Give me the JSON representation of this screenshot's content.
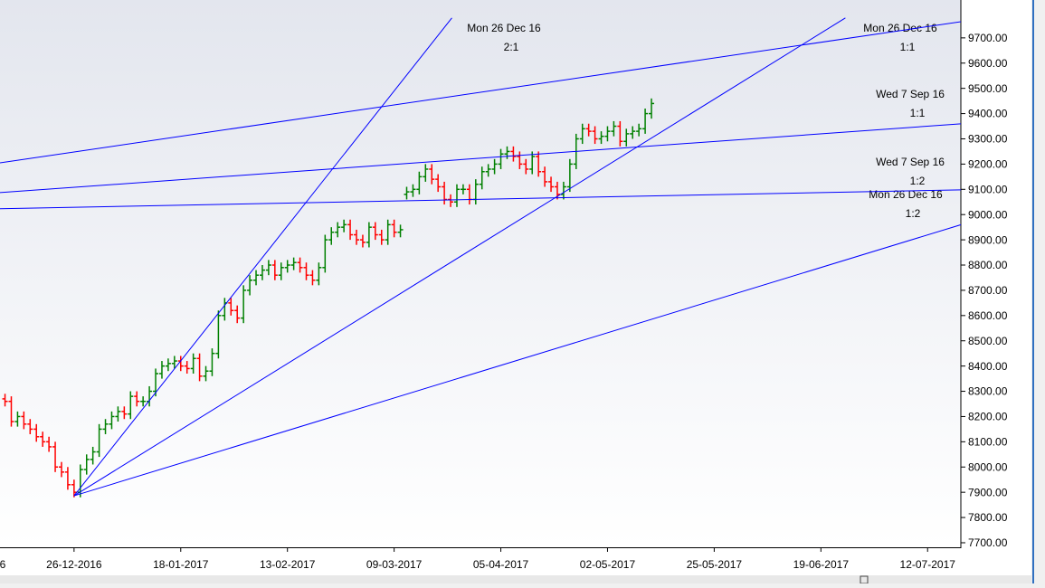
{
  "chart_data": {
    "type": "ohlc",
    "x": [
      -11,
      -10,
      -9,
      -8,
      -7,
      -6,
      -5,
      -4,
      -3,
      -2,
      -1,
      0,
      1,
      2,
      3,
      4,
      5,
      6,
      7,
      8,
      9,
      10,
      11,
      12,
      13,
      14,
      15,
      16,
      17,
      18,
      19,
      20,
      21,
      22,
      23,
      24,
      25,
      26,
      27,
      28,
      29,
      30,
      31,
      32,
      33,
      34,
      35,
      36,
      37,
      38,
      39,
      40,
      41,
      42,
      43,
      44,
      45,
      46,
      47,
      48,
      49,
      50,
      51,
      52,
      53,
      54,
      55,
      56,
      57,
      58,
      59,
      60,
      61,
      62,
      63,
      64,
      65,
      66,
      67,
      68,
      69,
      70,
      71,
      72,
      73,
      74,
      75,
      76,
      77,
      78,
      79,
      80,
      81,
      82,
      83,
      84,
      85,
      86,
      87,
      88,
      89,
      90,
      91,
      92
    ],
    "open": [
      8270,
      8260,
      8180,
      8200,
      8170,
      8150,
      8120,
      8100,
      8080,
      8000,
      7980,
      7930,
      7900,
      7990,
      8030,
      8060,
      8150,
      8170,
      8200,
      8220,
      8210,
      8280,
      8260,
      8260,
      8300,
      8370,
      8400,
      8410,
      8420,
      8400,
      8390,
      8430,
      8360,
      8380,
      8450,
      8600,
      8650,
      8620,
      8590,
      8700,
      8740,
      8760,
      8780,
      8800,
      8760,
      8790,
      8800,
      8810,
      8790,
      8760,
      8740,
      8790,
      8900,
      8930,
      8950,
      8960,
      8920,
      8900,
      8890,
      8950,
      8920,
      8900,
      8960,
      8930,
      9080,
      9090,
      9100,
      9150,
      9180,
      9140,
      9110,
      9060,
      9050,
      9100,
      9100,
      9060,
      9120,
      9170,
      9180,
      9200,
      9240,
      9250,
      9230,
      9200,
      9180,
      9230,
      9170,
      9130,
      9110,
      9080,
      9110,
      9200,
      9300,
      9340,
      9330,
      9300,
      9310,
      9330,
      9350,
      9290,
      9320,
      9330,
      9340,
      9400
    ],
    "high": [
      8290,
      8280,
      8220,
      8220,
      8190,
      8170,
      8140,
      8120,
      8100,
      8020,
      8000,
      7950,
      8010,
      8050,
      8080,
      8170,
      8190,
      8220,
      8240,
      8240,
      8300,
      8300,
      8280,
      8320,
      8390,
      8420,
      8430,
      8440,
      8440,
      8420,
      8450,
      8450,
      8400,
      8470,
      8620,
      8670,
      8670,
      8640,
      8720,
      8760,
      8780,
      8800,
      8820,
      8820,
      8810,
      8820,
      8830,
      8830,
      8810,
      8780,
      8810,
      8920,
      8950,
      8970,
      8980,
      8980,
      8940,
      8920,
      8970,
      8970,
      8940,
      8980,
      8980,
      8960,
      9110,
      9120,
      9170,
      9200,
      9200,
      9160,
      9130,
      9080,
      9120,
      9120,
      9120,
      9140,
      9190,
      9200,
      9220,
      9260,
      9270,
      9270,
      9250,
      9220,
      9250,
      9250,
      9190,
      9150,
      9130,
      9130,
      9220,
      9320,
      9360,
      9360,
      9350,
      9330,
      9350,
      9370,
      9370,
      9340,
      9350,
      9360,
      9420,
      9460
    ],
    "low": [
      8240,
      8160,
      8160,
      8150,
      8130,
      8100,
      8080,
      8060,
      7980,
      7960,
      7910,
      7880,
      7880,
      7970,
      8010,
      8040,
      8130,
      8150,
      8180,
      8190,
      8190,
      8240,
      8240,
      8240,
      8280,
      8350,
      8380,
      8390,
      8380,
      8370,
      8370,
      8340,
      8340,
      8360,
      8430,
      8580,
      8600,
      8570,
      8570,
      8680,
      8720,
      8740,
      8760,
      8740,
      8740,
      8770,
      8780,
      8770,
      8740,
      8720,
      8720,
      8770,
      8880,
      8910,
      8930,
      8900,
      8880,
      8870,
      8870,
      8900,
      8880,
      8880,
      8910,
      8910,
      9060,
      9070,
      9080,
      9130,
      9120,
      9090,
      9040,
      9030,
      9030,
      9080,
      9040,
      9040,
      9100,
      9150,
      9160,
      9180,
      9220,
      9210,
      9180,
      9160,
      9160,
      9150,
      9110,
      9090,
      9060,
      9060,
      9090,
      9180,
      9280,
      9310,
      9280,
      9280,
      9290,
      9310,
      9270,
      9270,
      9300,
      9310,
      9320,
      9380
    ],
    "close": [
      8260,
      8180,
      8200,
      8170,
      8150,
      8120,
      8100,
      8080,
      8000,
      7980,
      7930,
      7900,
      7990,
      8030,
      8060,
      8150,
      8170,
      8200,
      8220,
      8210,
      8280,
      8260,
      8260,
      8300,
      8370,
      8400,
      8410,
      8420,
      8400,
      8390,
      8430,
      8360,
      8380,
      8450,
      8600,
      8650,
      8620,
      8590,
      8700,
      8740,
      8760,
      8780,
      8800,
      8760,
      8790,
      8800,
      8810,
      8790,
      8760,
      8740,
      8790,
      8900,
      8930,
      8950,
      8960,
      8920,
      8900,
      8890,
      8950,
      8920,
      8900,
      8960,
      8930,
      8940,
      9090,
      9100,
      9150,
      9180,
      9140,
      9110,
      9060,
      9050,
      9100,
      9100,
      9060,
      9120,
      9170,
      9180,
      9200,
      9240,
      9250,
      9230,
      9200,
      9180,
      9230,
      9170,
      9130,
      9110,
      9080,
      9110,
      9200,
      9300,
      9340,
      9330,
      9300,
      9310,
      9330,
      9350,
      9290,
      9320,
      9330,
      9340,
      9400,
      9440
    ],
    "up_color": "#008000",
    "down_color": "#ff0000",
    "trendline_color": "#0000ff",
    "trendlines": [
      {
        "x": [
          0,
          60.2
        ],
        "y": [
          7886,
          9779
        ],
        "label": "Mon 26 Dec 16",
        "ratio": "2:1"
      },
      {
        "x": [
          0,
          122.9
        ],
        "y": [
          7886,
          9779
        ],
        "label": "Mon 26 Dec 16",
        "ratio": "1:1"
      },
      {
        "x": [
          0,
          141.6
        ],
        "y": [
          7886,
          8962
        ],
        "label": "Mon 26 Dec 16",
        "ratio": "1:2"
      },
      {
        "x": [
          -11.8,
          141.6
        ],
        "y": [
          9205,
          9765
        ]
      },
      {
        "x": [
          -11.8,
          141.6
        ],
        "y": [
          9087,
          9360
        ],
        "label": "Wed 7 Sep 16",
        "ratio": "1:1"
      },
      {
        "x": [
          -11.8,
          141.6
        ],
        "y": [
          9023,
          9098
        ],
        "label": "Wed 7 Sep 16",
        "ratio": "1:2"
      }
    ],
    "xlim": [
      -11.8,
      141.3
    ],
    "xticks": [
      {
        "value": -12,
        "label": "6"
      },
      {
        "value": 0,
        "label": "26-12-2016"
      },
      {
        "value": 17,
        "label": "18-01-2017"
      },
      {
        "value": 34,
        "label": "13-02-2017"
      },
      {
        "value": 51,
        "label": "09-03-2017"
      },
      {
        "value": 68,
        "label": "05-04-2017"
      },
      {
        "value": 85,
        "label": "02-05-2017"
      },
      {
        "value": 102,
        "label": "25-05-2017"
      },
      {
        "value": 119,
        "label": "19-06-2017"
      },
      {
        "value": 136,
        "label": "12-07-2017"
      }
    ],
    "ylim": [
      7682,
      9850
    ],
    "yticks": [
      {
        "value": 7700,
        "label": "7700.00"
      },
      {
        "value": 7800,
        "label": "7800.00"
      },
      {
        "value": 7900,
        "label": "7900.00"
      },
      {
        "value": 8000,
        "label": "8000.00"
      },
      {
        "value": 8100,
        "label": "8100.00"
      },
      {
        "value": 8200,
        "label": "8200.00"
      },
      {
        "value": 8300,
        "label": "8300.00"
      },
      {
        "value": 8400,
        "label": "8400.00"
      },
      {
        "value": 8500,
        "label": "8500.00"
      },
      {
        "value": 8600,
        "label": "8600.00"
      },
      {
        "value": 8700,
        "label": "8700.00"
      },
      {
        "value": 8800,
        "label": "8800.00"
      },
      {
        "value": 8900,
        "label": "8900.00"
      },
      {
        "value": 9000,
        "label": "9000.00"
      },
      {
        "value": 9100,
        "label": "9100.00"
      },
      {
        "value": 9200,
        "label": "9200.00"
      },
      {
        "value": 9300,
        "label": "9300.00"
      },
      {
        "value": 9400,
        "label": "9400.00"
      },
      {
        "value": 9500,
        "label": "9500.00"
      },
      {
        "value": 9600,
        "label": "9600.00"
      },
      {
        "value": 9700,
        "label": "9700.00"
      }
    ]
  }
}
